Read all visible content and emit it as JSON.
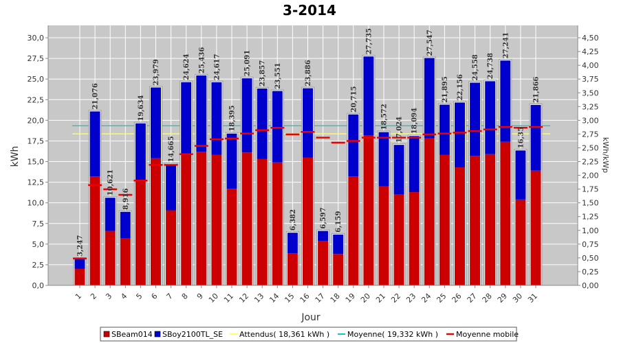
{
  "chart_data": {
    "type": "bar",
    "title": "3-2014",
    "xlabel": "Jour",
    "ylabel": "kWh",
    "ylabel_right": "kWh/kWp",
    "ylim": [
      0,
      31.5
    ],
    "ylim_right": [
      0,
      4.725
    ],
    "y_ticks": [
      "0,0",
      "2,5",
      "5,0",
      "7,5",
      "10,0",
      "12,5",
      "15,0",
      "17,5",
      "20,0",
      "22,5",
      "25,0",
      "27,5",
      "30,0"
    ],
    "y_right_ticks": [
      "0,00",
      "0,25",
      "0,50",
      "0,75",
      "1,00",
      "1,25",
      "1,50",
      "1,75",
      "2,00",
      "2,25",
      "2,50",
      "2,75",
      "3,00",
      "3,25",
      "3,50",
      "3,75",
      "4,00",
      "4,25",
      "4,50"
    ],
    "grid": true,
    "legend_position": "bottom",
    "categories": [
      "1",
      "2",
      "3",
      "4",
      "5",
      "6",
      "7",
      "8",
      "9",
      "10",
      "11",
      "12",
      "13",
      "14",
      "15",
      "16",
      "17",
      "18",
      "19",
      "20",
      "21",
      "22",
      "23",
      "24",
      "25",
      "26",
      "27",
      "28",
      "29",
      "30",
      "31"
    ],
    "series": [
      {
        "name": "SBeam014",
        "color": "#cc0000",
        "values": [
          2.0,
          13.2,
          6.6,
          5.7,
          12.7,
          15.4,
          9.1,
          15.8,
          16.2,
          15.8,
          11.7,
          16.1,
          15.3,
          14.9,
          3.9,
          15.5,
          5.4,
          3.8,
          13.2,
          18.2,
          12.0,
          11.0,
          11.3,
          17.8,
          15.8,
          14.3,
          15.7,
          15.9,
          17.4,
          10.4,
          13.9
        ]
      },
      {
        "name": "SBoy2100TL_SE",
        "color": "#0000cc",
        "values": [
          1.247,
          7.876,
          4.021,
          3.216,
          6.934,
          8.579,
          5.565,
          8.824,
          9.236,
          8.817,
          6.695,
          8.991,
          8.557,
          8.651,
          2.482,
          8.386,
          1.197,
          2.359,
          7.515,
          9.535,
          6.572,
          6.024,
          6.794,
          9.747,
          6.095,
          7.856,
          8.858,
          8.838,
          9.841,
          5.95,
          7.966
        ]
      }
    ],
    "totals": [
      3.247,
      21.076,
      10.621,
      8.916,
      19.634,
      23.979,
      14.665,
      24.624,
      25.436,
      24.617,
      18.395,
      25.091,
      23.857,
      23.551,
      6.382,
      23.886,
      6.597,
      6.159,
      20.715,
      27.735,
      18.572,
      17.024,
      18.094,
      27.547,
      21.895,
      22.156,
      24.558,
      24.738,
      27.241,
      16.35,
      21.866
    ],
    "data_labels": [
      "3,247",
      "21,076",
      "10,621",
      "8,916",
      "19,634",
      "23,979",
      "14,665",
      "24,624",
      "25,436",
      "24,617",
      "18,395",
      "25,091",
      "23,857",
      "23,551",
      "6,382",
      "23,886",
      "6,597",
      "6,159",
      "20,715",
      "27,735",
      "18,572",
      "17,024",
      "18,094",
      "27,547",
      "21,895",
      "22,156",
      "24,558",
      "24,738",
      "27,241",
      "16,35",
      "21,866"
    ],
    "reference_lines": [
      {
        "name": "Attendus( 18,361 kWh )",
        "value": 18.361,
        "color": "#ffff66"
      },
      {
        "name": "Moyenne( 19,332 kWh )",
        "value": 19.332,
        "color": "#00cccc"
      }
    ],
    "moving_average": {
      "name": "Moyenne mobile",
      "color": "#ee0000",
      "values": [
        3.247,
        12.16,
        11.65,
        10.97,
        12.7,
        14.6,
        14.6,
        15.9,
        16.9,
        17.7,
        17.8,
        18.4,
        18.8,
        19.1,
        18.3,
        18.6,
        17.9,
        17.3,
        17.5,
        17.9,
        17.9,
        17.9,
        17.9,
        18.3,
        18.4,
        18.5,
        18.7,
        18.9,
        19.2,
        19.1,
        19.2
      ]
    }
  }
}
